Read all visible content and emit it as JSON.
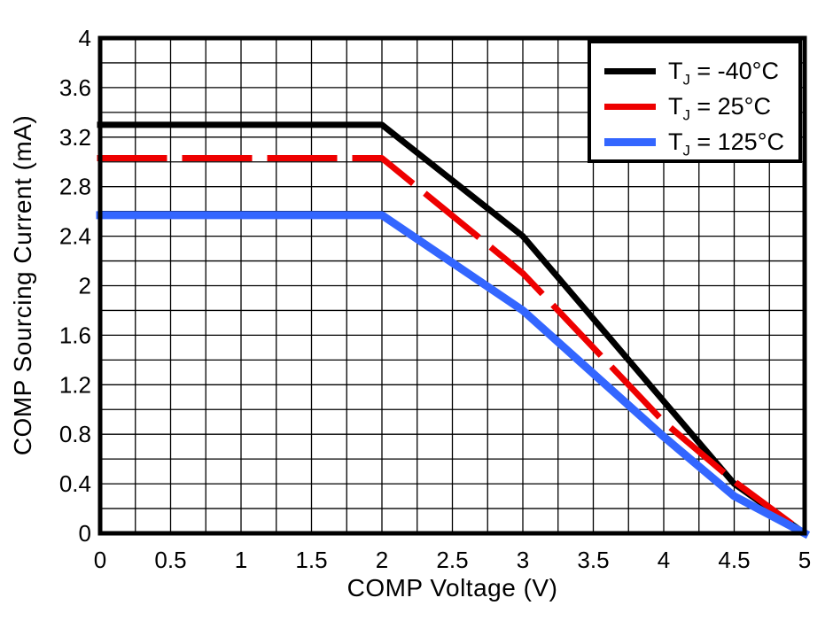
{
  "figure": {
    "background": "#ffffff",
    "frame_color": "#000000",
    "grid_color": "#000000"
  },
  "chart_data": {
    "type": "line",
    "title": "",
    "xlabel": "COMP Voltage (V)",
    "ylabel": "COMP Sourcing Current (mA)",
    "xlim": [
      0,
      5
    ],
    "ylim": [
      0,
      4
    ],
    "x_grid_step": 0.25,
    "y_grid_step": 0.2,
    "grid": true,
    "legend_position": "top-right",
    "x_major_ticks": [
      0,
      0.5,
      1,
      1.5,
      2,
      2.5,
      3,
      3.5,
      4,
      4.5,
      5
    ],
    "x_tick_labels": [
      "0",
      "0.5",
      "1",
      "1.5",
      "2",
      "2.5",
      "3",
      "3.5",
      "4",
      "4.5",
      "5"
    ],
    "y_major_ticks": [
      0,
      0.4,
      0.8,
      1.2,
      1.6,
      2,
      2.4,
      2.8,
      3.2,
      3.6,
      4
    ],
    "y_tick_labels": [
      "0",
      "0.4",
      "0.8",
      "1.2",
      "1.6",
      "2",
      "2.4",
      "2.8",
      "3.2",
      "3.6",
      "4"
    ],
    "series": [
      {
        "name": "TJ = -40°C",
        "label_parts": {
          "base": "T",
          "sub": "J",
          "rest": " = -40°C"
        },
        "color": "#000000",
        "style": "solid",
        "line_width": 7,
        "points": [
          [
            0,
            3.3
          ],
          [
            2,
            3.3
          ],
          [
            3,
            2.4
          ],
          [
            4.5,
            0.4
          ],
          [
            5,
            0
          ]
        ]
      },
      {
        "name": "TJ = 25°C",
        "label_parts": {
          "base": "T",
          "sub": "J",
          "rest": " = 25°C"
        },
        "color": "#ee0000",
        "style": "dashed",
        "dash_pattern": [
          72,
          24
        ],
        "line_width": 7,
        "points": [
          [
            0,
            3.03
          ],
          [
            2,
            3.03
          ],
          [
            3,
            2.1
          ],
          [
            4,
            0.9
          ],
          [
            4.5,
            0.42
          ],
          [
            5,
            0
          ]
        ]
      },
      {
        "name": "TJ = 125°C",
        "label_parts": {
          "base": "T",
          "sub": "J",
          "rest": " = 125°C"
        },
        "color": "#3366ff",
        "style": "solid",
        "line_width": 9,
        "points": [
          [
            0,
            2.57
          ],
          [
            2,
            2.57
          ],
          [
            3,
            1.8
          ],
          [
            4,
            0.78
          ],
          [
            4.5,
            0.3
          ],
          [
            5,
            0
          ]
        ]
      }
    ]
  }
}
